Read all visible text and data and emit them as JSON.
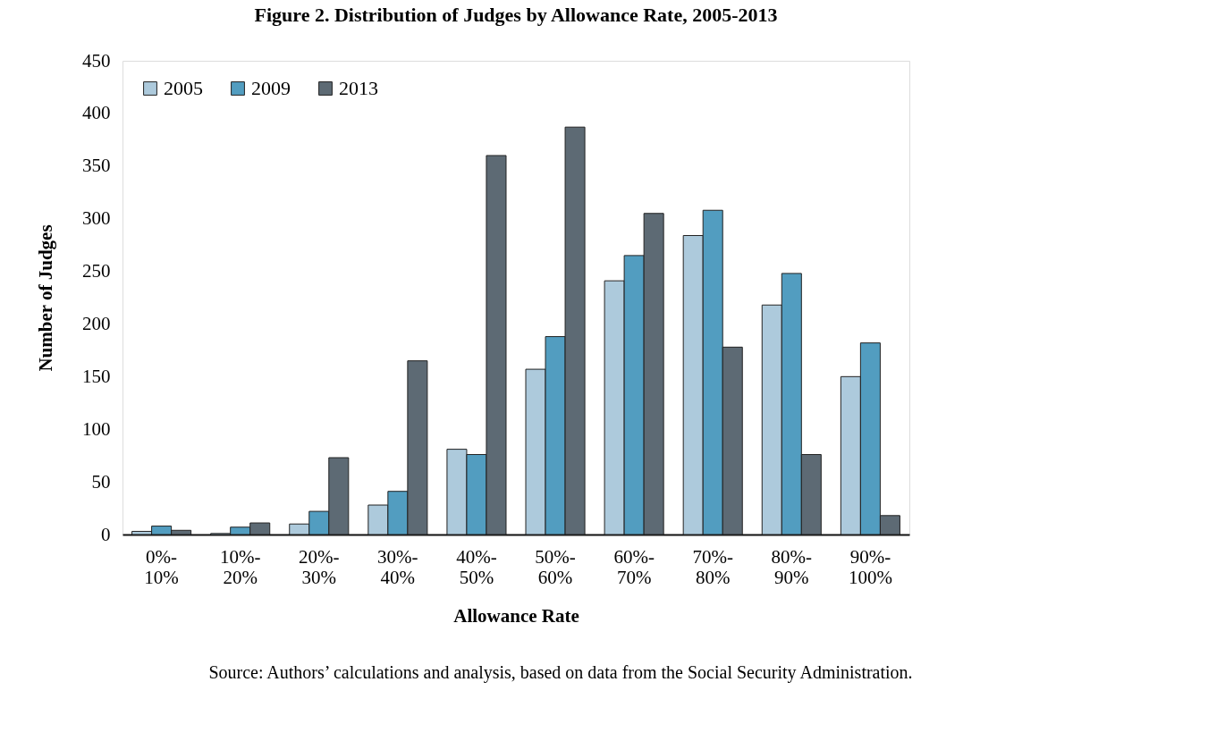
{
  "chart_data": {
    "type": "bar",
    "title": "Figure 2. Distribution of Judges by Allowance Rate, 2005-2013",
    "xlabel": "Allowance Rate",
    "ylabel": "Number of Judges",
    "categories": [
      "0%-\n10%",
      "10%-\n20%",
      "20%-\n30%",
      "30%-\n40%",
      "40%-\n50%",
      "50%-\n60%",
      "60%-\n70%",
      "70%-\n80%",
      "80%-\n90%",
      "90%-\n100%"
    ],
    "series": [
      {
        "name": "2005",
        "color": "#adcadc",
        "values": [
          3,
          1,
          10,
          28,
          81,
          157,
          241,
          284,
          218,
          150
        ]
      },
      {
        "name": "2009",
        "color": "#529dc0",
        "values": [
          8,
          7,
          22,
          41,
          76,
          188,
          265,
          308,
          248,
          182
        ]
      },
      {
        "name": "2013",
        "color": "#5d6a74",
        "values": [
          4,
          11,
          73,
          165,
          360,
          387,
          305,
          178,
          76,
          18
        ]
      }
    ],
    "ylim": [
      0,
      450
    ],
    "yticks": [
      0,
      50,
      100,
      150,
      200,
      250,
      300,
      350,
      400,
      450
    ],
    "grid": false,
    "legend": "top left",
    "annotations": [
      "Source: Authors’ calculations and analysis, based on data from the Social Security Administration."
    ]
  }
}
